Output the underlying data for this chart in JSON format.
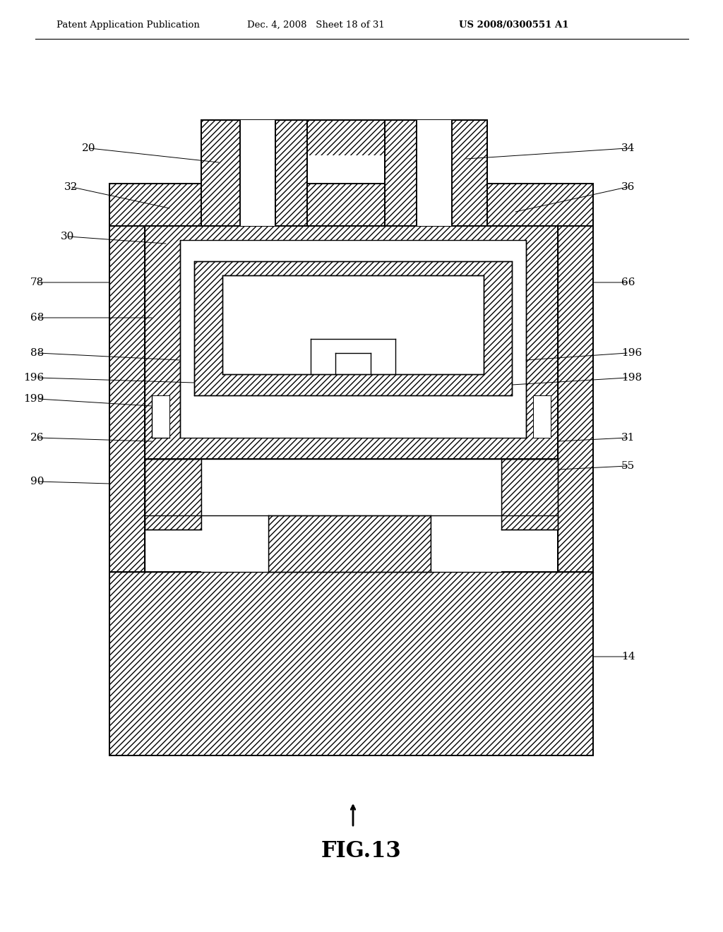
{
  "header_left": "Patent Application Publication",
  "header_mid": "Dec. 4, 2008   Sheet 18 of 31",
  "header_right": "US 2008/0300551 A1",
  "figure_label": "FIG.13",
  "bg_color": "#ffffff",
  "hatch": "////",
  "lw_outer": 1.4,
  "lw_inner": 1.0,
  "lw_detail": 0.7,
  "label_fontsize": 11,
  "header_fontsize": 9.5,
  "fig_label_fontsize": 22
}
